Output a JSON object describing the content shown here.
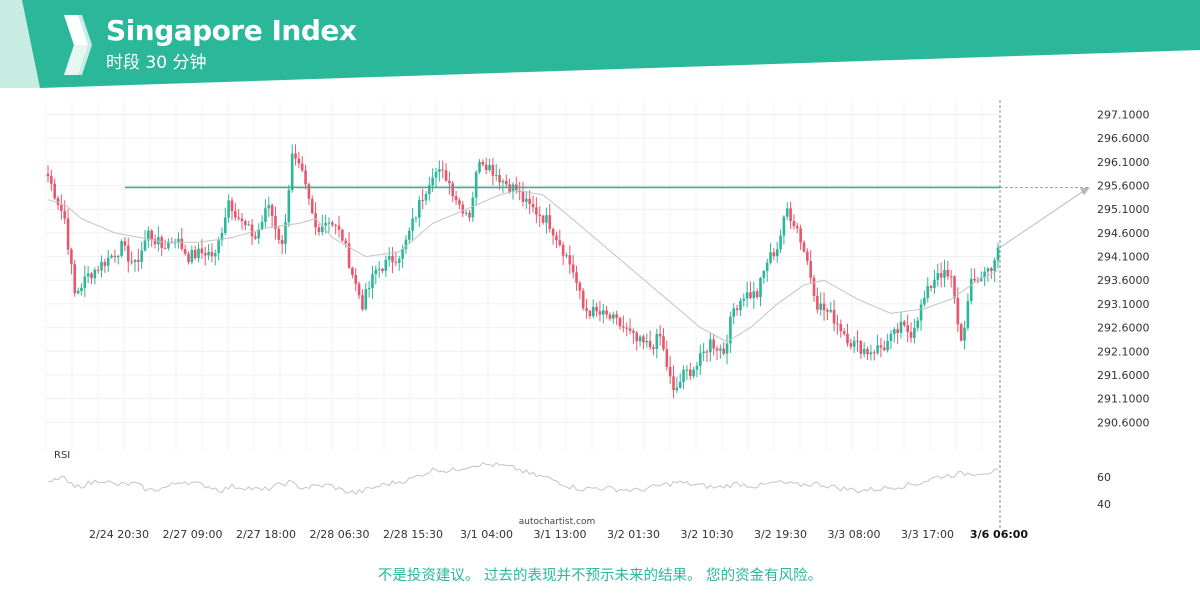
{
  "header": {
    "title": "Singapore Index",
    "subtitle": "时段 30 分钟"
  },
  "colors": {
    "brand": "#2bb89a",
    "brand_light": "#c9ece2",
    "bull": "#2bb89a",
    "bear": "#e8566c",
    "support_line": "#3cae8f",
    "moving_average": "#c4c4c4"
  },
  "chart_data": {
    "type": "candlestick",
    "price_axis": {
      "ylim": [
        290.1,
        297.3
      ],
      "ticks": [
        "297.1000",
        "296.6000",
        "296.1000",
        "295.6000",
        "295.1000",
        "294.6000",
        "294.1000",
        "293.6000",
        "293.1000",
        "292.6000",
        "292.1000",
        "291.6000",
        "291.1000",
        "290.6000"
      ]
    },
    "x_tick_labels": [
      "2/24 20:30",
      "2/27 09:00",
      "2/27 18:00",
      "2/28 06:30",
      "2/28 15:30",
      "3/1 04:00",
      "3/1 13:00",
      "3/2 01:30",
      "3/2 10:30",
      "3/2 19:30",
      "3/3 08:00",
      "3/3 17:00",
      "3/6 06:00"
    ],
    "pattern_level": 295.56,
    "close_anchors": [
      [
        0,
        295.8
      ],
      [
        5,
        294.9
      ],
      [
        8,
        293.3
      ],
      [
        12,
        293.7
      ],
      [
        17,
        294.0
      ],
      [
        22,
        294.3
      ],
      [
        26,
        293.9
      ],
      [
        30,
        294.6
      ],
      [
        34,
        294.3
      ],
      [
        38,
        294.5
      ],
      [
        42,
        294.1
      ],
      [
        47,
        294.2
      ],
      [
        50,
        294.1
      ],
      [
        54,
        295.3
      ],
      [
        58,
        294.8
      ],
      [
        62,
        294.5
      ],
      [
        66,
        295.2
      ],
      [
        70,
        294.3
      ],
      [
        73,
        296.2
      ],
      [
        76,
        295.8
      ],
      [
        80,
        294.7
      ],
      [
        84,
        294.9
      ],
      [
        88,
        294.5
      ],
      [
        92,
        293.5
      ],
      [
        94,
        293.1
      ],
      [
        98,
        293.8
      ],
      [
        102,
        294.0
      ],
      [
        106,
        294.2
      ],
      [
        108,
        294.6
      ],
      [
        111,
        295.2
      ],
      [
        115,
        295.9
      ],
      [
        119,
        295.8
      ],
      [
        123,
        295.2
      ],
      [
        126,
        295.0
      ],
      [
        129,
        296.2
      ],
      [
        132,
        296.0
      ],
      [
        136,
        295.7
      ],
      [
        140,
        295.5
      ],
      [
        143,
        295.2
      ],
      [
        147,
        295.0
      ],
      [
        150,
        294.8
      ],
      [
        153,
        294.4
      ],
      [
        157,
        293.8
      ],
      [
        160,
        293.0
      ],
      [
        164,
        292.9
      ],
      [
        168,
        292.8
      ],
      [
        172,
        292.6
      ],
      [
        176,
        292.3
      ],
      [
        180,
        292.2
      ],
      [
        183,
        292.4
      ],
      [
        187,
        291.2
      ],
      [
        190,
        291.6
      ],
      [
        194,
        291.8
      ],
      [
        198,
        292.3
      ],
      [
        202,
        292.1
      ],
      [
        205,
        293.0
      ],
      [
        208,
        293.3
      ],
      [
        212,
        293.3
      ],
      [
        215,
        294.0
      ],
      [
        218,
        294.3
      ],
      [
        221,
        295.1
      ],
      [
        224,
        294.7
      ],
      [
        227,
        294.0
      ],
      [
        230,
        293.1
      ],
      [
        235,
        292.8
      ],
      [
        240,
        292.3
      ],
      [
        245,
        292.1
      ],
      [
        250,
        292.2
      ],
      [
        255,
        292.6
      ],
      [
        258,
        292.5
      ],
      [
        262,
        293.2
      ],
      [
        266,
        293.8
      ],
      [
        270,
        293.6
      ],
      [
        273,
        292.3
      ],
      [
        276,
        293.5
      ],
      [
        279,
        293.7
      ],
      [
        282,
        293.9
      ],
      [
        284,
        294.2
      ]
    ],
    "sma_anchors": [
      [
        0,
        295.3
      ],
      [
        5,
        295.2
      ],
      [
        10,
        294.9
      ],
      [
        20,
        294.6
      ],
      [
        35,
        294.4
      ],
      [
        45,
        294.4
      ],
      [
        55,
        294.5
      ],
      [
        65,
        294.7
      ],
      [
        75,
        294.8
      ],
      [
        80,
        294.9
      ],
      [
        85,
        294.5
      ],
      [
        95,
        294.1
      ],
      [
        105,
        294.2
      ],
      [
        115,
        294.8
      ],
      [
        125,
        295.1
      ],
      [
        135,
        295.4
      ],
      [
        140,
        295.5
      ],
      [
        148,
        295.4
      ],
      [
        155,
        295.0
      ],
      [
        165,
        294.4
      ],
      [
        175,
        293.8
      ],
      [
        185,
        293.2
      ],
      [
        195,
        292.6
      ],
      [
        203,
        292.3
      ],
      [
        210,
        292.6
      ],
      [
        218,
        293.1
      ],
      [
        226,
        293.5
      ],
      [
        232,
        293.6
      ],
      [
        242,
        293.2
      ],
      [
        252,
        292.9
      ],
      [
        262,
        293.0
      ],
      [
        270,
        293.2
      ],
      [
        278,
        293.6
      ],
      [
        284,
        293.8
      ]
    ],
    "rsi": {
      "label": "RSI",
      "ticks": [
        60,
        40
      ],
      "ylim": [
        32,
        76
      ],
      "anchors": [
        [
          0,
          55
        ],
        [
          4,
          60
        ],
        [
          8,
          52
        ],
        [
          12,
          55
        ],
        [
          16,
          58
        ],
        [
          20,
          54
        ],
        [
          26,
          55
        ],
        [
          30,
          50
        ],
        [
          35,
          52
        ],
        [
          40,
          57
        ],
        [
          44,
          55
        ],
        [
          48,
          53
        ],
        [
          52,
          50
        ],
        [
          55,
          53
        ],
        [
          60,
          52
        ],
        [
          64,
          50
        ],
        [
          68,
          53
        ],
        [
          72,
          56
        ],
        [
          76,
          52
        ],
        [
          80,
          53
        ],
        [
          84,
          54
        ],
        [
          88,
          50
        ],
        [
          92,
          48
        ],
        [
          96,
          51
        ],
        [
          100,
          54
        ],
        [
          104,
          56
        ],
        [
          108,
          58
        ],
        [
          112,
          62
        ],
        [
          116,
          66
        ],
        [
          120,
          64
        ],
        [
          124,
          67
        ],
        [
          128,
          69
        ],
        [
          132,
          69
        ],
        [
          136,
          68
        ],
        [
          140,
          66
        ],
        [
          144,
          62
        ],
        [
          148,
          60
        ],
        [
          152,
          57
        ],
        [
          156,
          53
        ],
        [
          160,
          51
        ],
        [
          164,
          52
        ],
        [
          170,
          51
        ],
        [
          176,
          50
        ],
        [
          182,
          53
        ],
        [
          188,
          56
        ],
        [
          194,
          54
        ],
        [
          200,
          52
        ],
        [
          206,
          55
        ],
        [
          212,
          53
        ],
        [
          218,
          56
        ],
        [
          224,
          54
        ],
        [
          230,
          55
        ],
        [
          236,
          52
        ],
        [
          242,
          50
        ],
        [
          248,
          51
        ],
        [
          254,
          53
        ],
        [
          260,
          55
        ],
        [
          266,
          60
        ],
        [
          272,
          62
        ],
        [
          278,
          63
        ],
        [
          284,
          64
        ]
      ]
    },
    "watermark": "autochartist.com"
  },
  "disclaimer": "不是投资建议。 过去的表现并不预示未来的结果。 您的资金有风险。"
}
